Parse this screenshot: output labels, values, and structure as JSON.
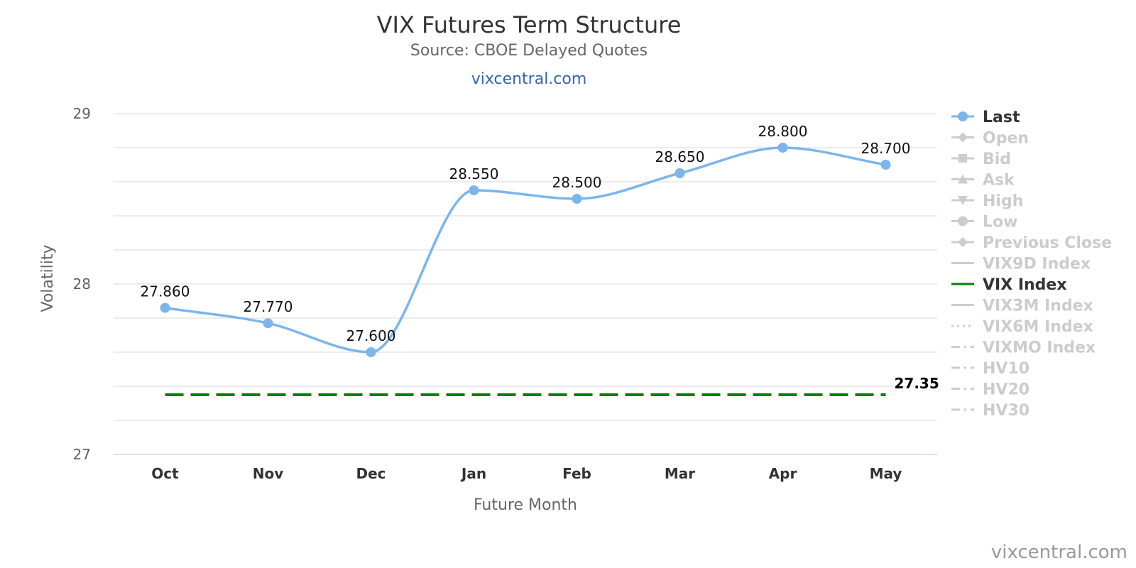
{
  "chart_data": {
    "type": "line",
    "title": "VIX Futures Term Structure",
    "subtitle": "Source: CBOE Delayed Quotes",
    "site_link": "vixcentral.com",
    "credit": "vixcentral.com",
    "xlabel": "Future Month",
    "ylabel": "Volatility",
    "ylim": [
      27,
      29
    ],
    "yticks": [
      27,
      28,
      29
    ],
    "grid": true,
    "legend_position": "right",
    "categories": [
      "Oct",
      "Nov",
      "Dec",
      "Jan",
      "Feb",
      "Mar",
      "Apr",
      "May"
    ],
    "series": [
      {
        "name": "Last",
        "values": [
          27.86,
          27.77,
          27.6,
          28.55,
          28.5,
          28.65,
          28.8,
          28.7
        ],
        "labels": [
          "27.860",
          "27.770",
          "27.600",
          "28.550",
          "28.500",
          "28.650",
          "28.800",
          "28.700"
        ],
        "color": "#7cb5ec",
        "style": "solid-smooth-markers"
      },
      {
        "name": "VIX Index",
        "values": [
          27.35,
          27.35,
          27.35,
          27.35,
          27.35,
          27.35,
          27.35,
          27.35
        ],
        "end_label": "27.35",
        "color": "#008000",
        "style": "dashed"
      }
    ],
    "legend": [
      {
        "name": "Last",
        "active": true,
        "symbol": "circle",
        "line": "solid",
        "color": "#7cb5ec"
      },
      {
        "name": "Open",
        "active": false,
        "symbol": "diamond",
        "line": "solid"
      },
      {
        "name": "Bid",
        "active": false,
        "symbol": "square",
        "line": "solid"
      },
      {
        "name": "Ask",
        "active": false,
        "symbol": "triangle",
        "line": "solid"
      },
      {
        "name": "High",
        "active": false,
        "symbol": "triangle-down",
        "line": "solid"
      },
      {
        "name": "Low",
        "active": false,
        "symbol": "circle",
        "line": "solid"
      },
      {
        "name": "Previous Close",
        "active": false,
        "symbol": "diamond",
        "line": "solid"
      },
      {
        "name": "VIX9D Index",
        "active": false,
        "symbol": "none",
        "line": "solid"
      },
      {
        "name": "VIX Index",
        "active": true,
        "symbol": "none",
        "line": "solid",
        "color": "#008000"
      },
      {
        "name": "VIX3M Index",
        "active": false,
        "symbol": "none",
        "line": "solid"
      },
      {
        "name": "VIX6M Index",
        "active": false,
        "symbol": "none",
        "line": "dotted"
      },
      {
        "name": "VIXMO Index",
        "active": false,
        "symbol": "none",
        "line": "dashdot"
      },
      {
        "name": "HV10",
        "active": false,
        "symbol": "none",
        "line": "dashdot"
      },
      {
        "name": "HV20",
        "active": false,
        "symbol": "none",
        "line": "dashdot"
      },
      {
        "name": "HV30",
        "active": false,
        "symbol": "none",
        "line": "dashdot"
      }
    ],
    "colors": {
      "inactive": "#cccccc",
      "active_text": "#333333",
      "grid": "#e6e6e6"
    }
  }
}
